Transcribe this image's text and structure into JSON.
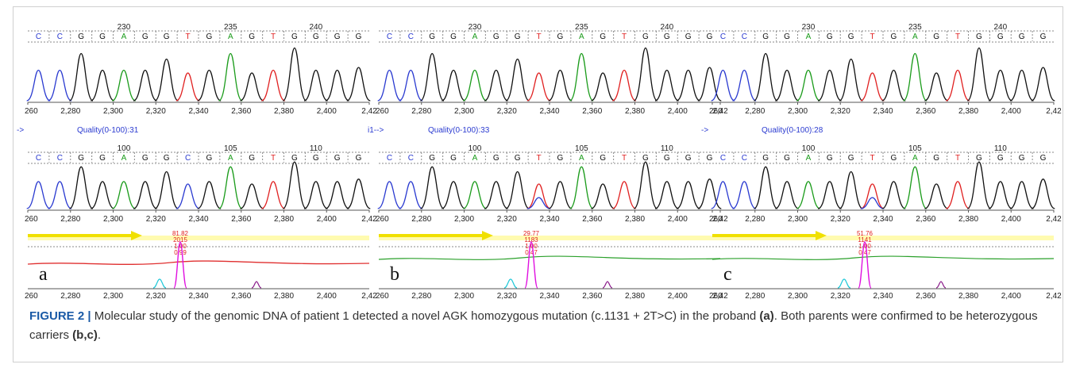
{
  "figure": {
    "caption": {
      "label": "FIGURE 2 |",
      "text_1": " Molecular study of the genomic DNA of patient 1 detected a novel AGK homozygous mutation (c.1131 + 2T>C) in the proband ",
      "ref_a": "(a)",
      "text_2": ". Both parents were confirmed to be heterozygous carriers ",
      "ref_bc": "(b,c)",
      "text_3": "."
    },
    "colors": {
      "A": "#1a9b1a",
      "C": "#2a3ad0",
      "G": "#111111",
      "T": "#e02020",
      "quality": "#2a3ad0",
      "arrow": "#f0e000",
      "stats": "#e02020",
      "magenta": "#e010e0",
      "cyan": "#20c8d8",
      "red_trace": "#e03030",
      "green_trace": "#2aa02a"
    },
    "bases": [
      "C",
      "C",
      "G",
      "G",
      "A",
      "G",
      "G",
      "T",
      "G",
      "A",
      "G",
      "T",
      "G",
      "G",
      "G",
      "G"
    ],
    "x_axis_ticks": [
      "260",
      "2,280",
      "2,300",
      "2,320",
      "2,340",
      "2,360",
      "2,380",
      "2,400",
      "2,42"
    ],
    "panels": [
      {
        "panel_label": "a",
        "row1_positions": [
          "230",
          "235",
          "240"
        ],
        "row2_prefix": "->",
        "quality": "Quality(0-100):31",
        "row2_positions": [
          "100",
          "105",
          "110"
        ],
        "row2_bases": [
          "C",
          "C",
          "G",
          "G",
          "A",
          "G",
          "G",
          "C",
          "G",
          "A",
          "G",
          "T",
          "G",
          "G",
          "G",
          "G"
        ],
        "stats": [
          "81.82",
          "2015",
          "1.00",
          "0.99"
        ]
      },
      {
        "panel_label": "b",
        "row1_positions": [
          "230",
          "235",
          "240"
        ],
        "row2_prefix": "i1-->",
        "quality": "Quality(0-100):33",
        "row2_positions": [
          "100",
          "105",
          "110"
        ],
        "row2_bases": [
          "C",
          "C",
          "G",
          "G",
          "A",
          "G",
          "G",
          "T",
          "G",
          "A",
          "G",
          "T",
          "G",
          "G",
          "G",
          "G"
        ],
        "stats": [
          "29.77",
          "1183",
          "1.00",
          "0.47"
        ]
      },
      {
        "panel_label": "c",
        "row1_positions": [
          "230",
          "235",
          "240"
        ],
        "row2_prefix": "->",
        "quality": "Quality(0-100):28",
        "row2_positions": [
          "100",
          "105",
          "110"
        ],
        "row2_bases": [
          "C",
          "C",
          "G",
          "G",
          "A",
          "G",
          "G",
          "T",
          "G",
          "A",
          "G",
          "T",
          "G",
          "G",
          "G",
          "G"
        ],
        "stats": [
          "51.76",
          "1141",
          "1.00",
          "0.47"
        ]
      }
    ]
  }
}
